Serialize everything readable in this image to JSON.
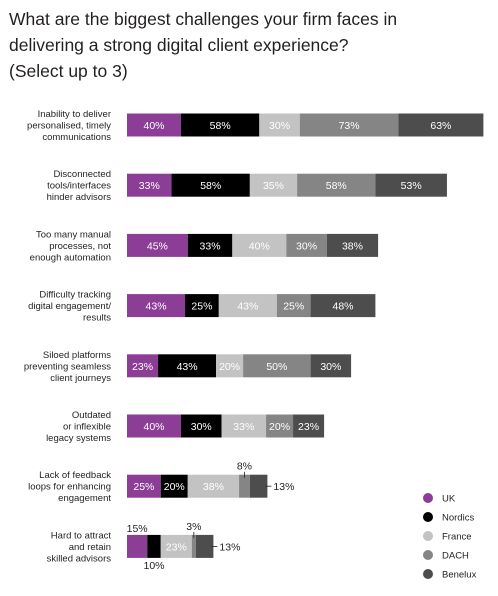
{
  "title_lines": [
    "What are the biggest challenges your firm faces in",
    "delivering a strong digital client experience?",
    "(Select up to 3)"
  ],
  "chart_data": {
    "type": "bar",
    "orientation": "horizontal",
    "stacked": true,
    "value_suffix": "%",
    "categories": [
      [
        "Inability to deliver",
        "personalised, timely",
        "communications"
      ],
      [
        "Disconnected",
        "tools/interfaces",
        "hinder advisors"
      ],
      [
        "Too many manual",
        "processes, not",
        "enough automation"
      ],
      [
        "Difficulty tracking",
        "digital engagement/",
        "results"
      ],
      [
        "Siloed platforms",
        "preventing seamless",
        "client journeys"
      ],
      [
        "Outdated",
        "or inflexible",
        "legacy systems"
      ],
      [
        "Lack of feedback",
        "loops for enhancing",
        "engagement"
      ],
      [
        "Hard to attract",
        "and retain",
        "skilled advisors"
      ]
    ],
    "series": [
      {
        "name": "UK",
        "color": "#8c3d96",
        "label_color": "#ffffff",
        "values": [
          40,
          33,
          45,
          43,
          23,
          40,
          25,
          15
        ]
      },
      {
        "name": "Nordics",
        "color": "#000000",
        "label_color": "#ffffff",
        "values": [
          58,
          58,
          33,
          25,
          43,
          30,
          20,
          10
        ]
      },
      {
        "name": "France",
        "color": "#c3c3c3",
        "label_color": "#ffffff",
        "values": [
          30,
          35,
          40,
          43,
          20,
          33,
          38,
          23
        ]
      },
      {
        "name": "DACH",
        "color": "#858585",
        "label_color": "#ffffff",
        "values": [
          73,
          58,
          30,
          25,
          50,
          20,
          8,
          3
        ]
      },
      {
        "name": "Benelux",
        "color": "#4d4d4d",
        "label_color": "#ffffff",
        "values": [
          63,
          53,
          38,
          48,
          30,
          23,
          13,
          13
        ]
      }
    ],
    "legend_position": "bottom-right",
    "grid": false
  }
}
